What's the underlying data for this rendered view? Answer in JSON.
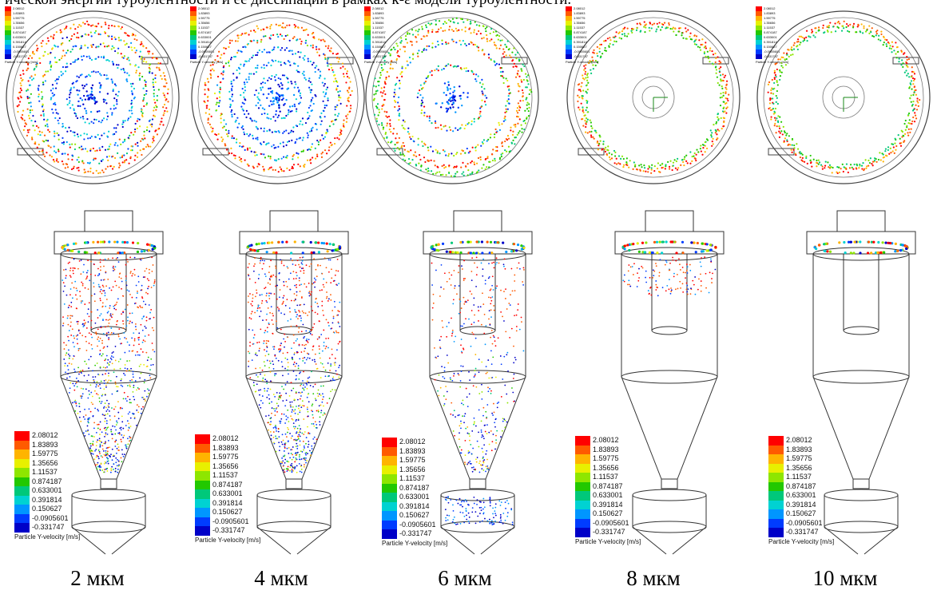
{
  "intro_text": "ической энергии турбулентности и ее диссипации в рамках k-ε модели турбулентности.",
  "legend": {
    "title": "Particle Y-velocity [m/s]",
    "values": [
      "2.08012",
      "1.83893",
      "1.59775",
      "1.35656",
      "1.11537",
      "0.874187",
      "0.633001",
      "0.391814",
      "0.150627",
      "-0.0905601",
      "-0.331747"
    ],
    "colors": [
      "#ff0000",
      "#ff5a00",
      "#ffb400",
      "#e8f000",
      "#8ee600",
      "#22c800",
      "#00c87a",
      "#00d2d2",
      "#0096ff",
      "#003cff",
      "#0000c8"
    ]
  },
  "panels": [
    {
      "caption": "2 мкм"
    },
    {
      "caption": "4 мкм"
    },
    {
      "caption": "6 мкм"
    },
    {
      "caption": "8 мкм"
    },
    {
      "caption": "10 мкм"
    }
  ]
}
